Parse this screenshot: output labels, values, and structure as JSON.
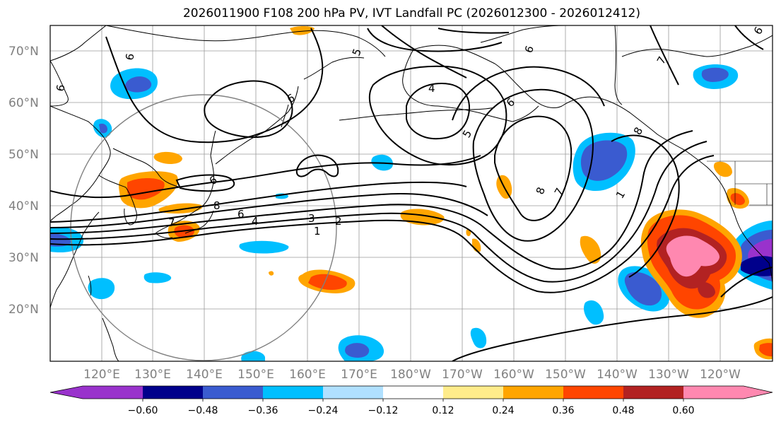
{
  "title": "2026011900 F108 200 hPa PV, IVT Landfall PC (2026012300 - 2026012412)",
  "map": {
    "lon_labels": [
      "120°E",
      "130°E",
      "140°E",
      "150°E",
      "160°E",
      "170°E",
      "180°W",
      "170°W",
      "160°W",
      "150°W",
      "140°W",
      "130°W",
      "120°W"
    ],
    "lat_labels": [
      "70°N",
      "60°N",
      "50°N",
      "40°N",
      "30°N",
      "20°N"
    ],
    "contour_labels": [
      "6",
      "6",
      "6",
      "5",
      "6",
      "4",
      "5",
      "6",
      "6",
      "8",
      "7",
      "8",
      "6",
      "4",
      "3",
      "2",
      "1",
      "7",
      "8",
      "7",
      "1",
      "6"
    ],
    "colors": {
      "ocean": "#ffffff",
      "coast": "#000000",
      "grid": "#9a9a9a",
      "contour": "#000000",
      "circle": "#808080"
    }
  },
  "colorbar": {
    "colors": [
      "#9932cc",
      "#00008b",
      "#3a5bd0",
      "#00bfff",
      "#b0e0ff",
      "#ffffff",
      "#ffec8b",
      "#ffa500",
      "#ff4500",
      "#b22222",
      "#ff88b0"
    ],
    "labels": [
      "−0.60",
      "−0.48",
      "−0.36",
      "−0.24",
      "−0.12",
      "0.12",
      "0.24",
      "0.36",
      "0.48",
      "0.60"
    ]
  }
}
